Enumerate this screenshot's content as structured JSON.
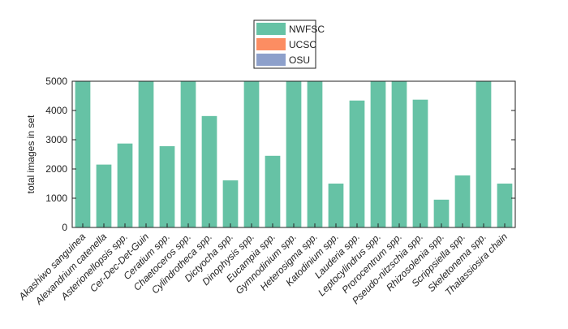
{
  "chart_data": {
    "type": "bar",
    "stacked": true,
    "ylabel": "total images in set",
    "categories": [
      "Akashiwo sanguinea",
      "Alexandrium catenella",
      "Asterionellopsis spp.",
      "Cer-Dec-Det-Guin",
      "Ceratium spp.",
      "Chaetoceros spp.",
      "Cylindrotheca spp.",
      "Dictyocha spp.",
      "Dinophysis spp.",
      "Eucampia spp.",
      "Gymnodinium spp.",
      "Heterosigma spp.",
      "Katodinium spp.",
      "Lauderia spp.",
      "Leptocylindrus spp.",
      "Prorocentrum spp.",
      "Pseudo-nitzschia spp.",
      "Rhizosolenia spp.",
      "Scrippsiella spp.",
      "Skeletonema spp.",
      "Thalassiosira chain"
    ],
    "series": [
      {
        "name": "NWFSC",
        "color": "#66c2a5",
        "values": [
          5000,
          2150,
          2870,
          5000,
          2780,
          5000,
          3810,
          1610,
          5000,
          2450,
          5000,
          5000,
          1500,
          4340,
          5000,
          5000,
          4370,
          950,
          1780,
          5000,
          1500
        ]
      },
      {
        "name": "UCSC",
        "color": "#fc8d62",
        "values": [
          0,
          0,
          0,
          0,
          0,
          0,
          0,
          0,
          0,
          0,
          0,
          0,
          0,
          0,
          0,
          0,
          0,
          0,
          0,
          0,
          0
        ]
      },
      {
        "name": "OSU",
        "color": "#8da0cb",
        "values": [
          0,
          0,
          0,
          0,
          0,
          0,
          0,
          0,
          0,
          0,
          0,
          0,
          0,
          0,
          0,
          0,
          0,
          0,
          0,
          0,
          0
        ]
      }
    ],
    "ylim": [
      0,
      5000
    ],
    "yticks": [
      0,
      1000,
      2000,
      3000,
      4000,
      5000
    ],
    "legend": "top"
  }
}
